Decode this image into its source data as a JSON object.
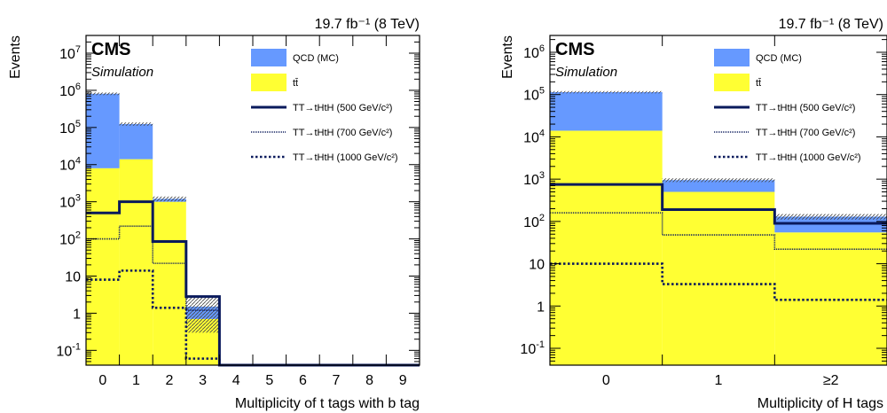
{
  "chart_data": [
    {
      "type": "bar",
      "lumi_label": "19.7 fb⁻¹ (8 TeV)",
      "cms_label": "CMS",
      "sim_label": "Simulation",
      "xlabel": "Multiplicity of t tags with b tag",
      "ylabel": "Events",
      "ylim": [
        0.04,
        30000000
      ],
      "yscale": "log",
      "x_edges": [
        -0.5,
        0.5,
        1.5,
        2.5,
        3.5,
        4.5,
        5.5,
        6.5,
        7.5,
        8.5,
        9.5
      ],
      "categories": [
        "0",
        "1",
        "2",
        "3",
        "4",
        "5",
        "6",
        "7",
        "8",
        "9"
      ],
      "yticks": [
        {
          "value": 0.1,
          "base": "10",
          "exp": "-1"
        },
        {
          "value": 1,
          "base": "1",
          "exp": ""
        },
        {
          "value": 10,
          "base": "10",
          "exp": ""
        },
        {
          "value": 100,
          "base": "10",
          "exp": "2"
        },
        {
          "value": 1000,
          "base": "10",
          "exp": "3"
        },
        {
          "value": 10000,
          "base": "10",
          "exp": "4"
        },
        {
          "value": 100000,
          "base": "10",
          "exp": "5"
        },
        {
          "value": 1000000,
          "base": "10",
          "exp": "6"
        },
        {
          "value": 10000000,
          "base": "10",
          "exp": "7"
        }
      ],
      "stack": [
        {
          "name": "t̄t",
          "legend": "tt̄",
          "color": "#ffff33",
          "values": [
            8000,
            14000,
            1000,
            0.7,
            0,
            0,
            0,
            0,
            0,
            0
          ]
        },
        {
          "name": "QCD (MC)",
          "legend": "QCD (MC)",
          "color": "#6699ff",
          "values": [
            800000,
            110000,
            200,
            0.8,
            0,
            0,
            0,
            0,
            0,
            0
          ]
        }
      ],
      "unc_band": [
        0.08,
        0.1,
        0.15,
        0.8,
        0,
        0,
        0,
        0,
        0,
        0
      ],
      "signals": [
        {
          "name": "TT→tHtH (500 GeV/c²)",
          "style": "solid",
          "values": [
            500,
            1000,
            85,
            2.8,
            0.04,
            0.04,
            0.04,
            0.04,
            0.04,
            0.04
          ]
        },
        {
          "name": "TT→tHtH (700 GeV/c²)",
          "style": "dense-dot",
          "values": [
            100,
            220,
            22,
            1.2,
            0.04,
            0.04,
            0.04,
            0.04,
            0.04,
            0.04
          ]
        },
        {
          "name": "TT→tHtH (1000 GeV/c²)",
          "style": "dotted",
          "values": [
            8,
            14,
            1.4,
            0.06,
            0.04,
            0.04,
            0.04,
            0.04,
            0.04,
            0.04
          ]
        }
      ]
    },
    {
      "type": "bar",
      "lumi_label": "19.7 fb⁻¹ (8 TeV)",
      "cms_label": "CMS",
      "sim_label": "Simulation",
      "xlabel": "Multiplicity of H tags",
      "ylabel": "Events",
      "ylim": [
        0.04,
        2500000
      ],
      "yscale": "log",
      "x_edges": [
        -0.5,
        0.5,
        1.5,
        2.5
      ],
      "categories": [
        "0",
        "1",
        "≥2"
      ],
      "yticks": [
        {
          "value": 0.1,
          "base": "10",
          "exp": "-1"
        },
        {
          "value": 1,
          "base": "1",
          "exp": ""
        },
        {
          "value": 10,
          "base": "10",
          "exp": ""
        },
        {
          "value": 100,
          "base": "10",
          "exp": "2"
        },
        {
          "value": 1000,
          "base": "10",
          "exp": "3"
        },
        {
          "value": 10000,
          "base": "10",
          "exp": "4"
        },
        {
          "value": 100000,
          "base": "10",
          "exp": "5"
        },
        {
          "value": 1000000,
          "base": "10",
          "exp": "6"
        }
      ],
      "stack": [
        {
          "name": "t̄t",
          "legend": "tt̄",
          "color": "#ffff33",
          "values": [
            14000,
            500,
            55
          ]
        },
        {
          "name": "QCD (MC)",
          "legend": "QCD (MC)",
          "color": "#6699ff",
          "values": [
            100000,
            450,
            75
          ]
        }
      ],
      "unc_band": [
        0.06,
        0.1,
        0.15
      ],
      "signals": [
        {
          "name": "TT→tHtH (500 GeV/c²)",
          "style": "solid",
          "values": [
            750,
            190,
            90
          ]
        },
        {
          "name": "TT→tHtH (700 GeV/c²)",
          "style": "dense-dot",
          "values": [
            160,
            48,
            22
          ]
        },
        {
          "name": "TT→tHtH (1000 GeV/c²)",
          "style": "dotted",
          "values": [
            10,
            3.3,
            1.4
          ]
        }
      ]
    }
  ]
}
